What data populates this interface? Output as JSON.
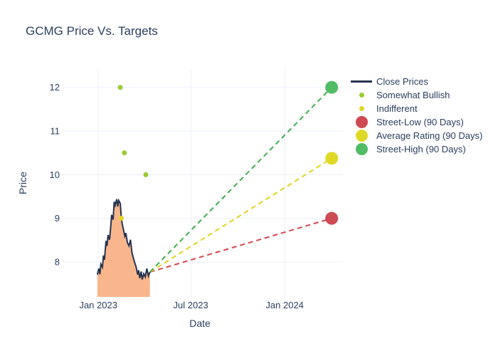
{
  "chart_data": {
    "type": "line",
    "title": "GCMG Price Vs. Targets",
    "xlabel": "Date",
    "ylabel": "Price",
    "x_range": [
      "2022-10-30",
      "2024-04-24"
    ],
    "y_range": [
      7.2,
      12.42
    ],
    "x_ticks": [
      {
        "date": "2023-01-01",
        "label": "Jan 2023"
      },
      {
        "date": "2023-07-01",
        "label": "Jul 2023"
      },
      {
        "date": "2024-01-01",
        "label": "Jan 2024"
      }
    ],
    "y_ticks": [
      8,
      9,
      10,
      11,
      12
    ],
    "grid": true,
    "legend_position": "right",
    "colors": {
      "grid": "#ebf0f8",
      "text": "#2a3f5f",
      "background": "#ffffff"
    },
    "close_prices": {
      "name": "Close Prices",
      "color": "#263450",
      "fill": "#f9b68c",
      "dates": [
        "2022-12-30",
        "2023-01-02",
        "2023-01-04",
        "2023-01-06",
        "2023-01-09",
        "2023-01-11",
        "2023-01-13",
        "2023-01-16",
        "2023-01-18",
        "2023-01-20",
        "2023-01-23",
        "2023-01-25",
        "2023-01-27",
        "2023-01-30",
        "2023-02-01",
        "2023-02-03",
        "2023-02-06",
        "2023-02-08",
        "2023-02-10",
        "2023-02-13",
        "2023-02-15",
        "2023-02-17",
        "2023-02-20",
        "2023-02-22",
        "2023-02-24",
        "2023-02-27",
        "2023-03-02",
        "2023-03-05",
        "2023-03-08",
        "2023-03-10",
        "2023-03-13",
        "2023-03-16",
        "2023-03-19",
        "2023-03-21",
        "2023-03-23",
        "2023-03-26",
        "2023-03-28",
        "2023-03-31",
        "2023-04-03",
        "2023-04-06",
        "2023-04-09",
        "2023-04-12"
      ],
      "values": [
        7.71,
        7.85,
        7.72,
        7.95,
        7.88,
        8.15,
        8.05,
        8.48,
        8.37,
        8.62,
        8.51,
        8.76,
        9.08,
        8.97,
        9.38,
        9.3,
        9.44,
        9.27,
        9.41,
        9.34,
        9.02,
        8.86,
        8.7,
        8.59,
        8.66,
        8.44,
        8.37,
        8.51,
        8.2,
        8.12,
        7.99,
        7.89,
        7.71,
        7.81,
        7.63,
        7.78,
        7.6,
        7.73,
        7.66,
        7.85,
        7.68,
        7.77
      ]
    },
    "ratings": [
      {
        "name": "Somewhat Bullish",
        "color": "#9acd32",
        "size": 7,
        "points": [
          {
            "date": "2023-02-13",
            "value": 12.0
          },
          {
            "date": "2023-02-21",
            "value": 10.5
          },
          {
            "date": "2023-04-04",
            "value": 10.0
          }
        ]
      },
      {
        "name": "Indifferent",
        "color": "#e1d723",
        "size": 7,
        "points": [
          {
            "date": "2023-02-15",
            "value": 9.0
          }
        ]
      }
    ],
    "target_line_start": {
      "date": "2023-04-12",
      "value": 7.77
    },
    "targets": [
      {
        "name": "Street-Low (90 Days)",
        "color": "#cd4a52",
        "line_color": "#d8454f",
        "date": "2024-04-02",
        "value": 9.0
      },
      {
        "name": "Average Rating (90 Days)",
        "color": "#dfd926",
        "line_color": "#e1d31f",
        "date": "2024-04-02",
        "value": 10.375
      },
      {
        "name": "Street-High (90 Days)",
        "color": "#50bd66",
        "line_color": "#3db04c",
        "date": "2024-04-02",
        "value": 12.0
      }
    ],
    "legend": [
      {
        "label": "Close Prices",
        "marker": "line",
        "color": "#263450"
      },
      {
        "label": "Somewhat Bullish",
        "marker": "dot-small",
        "color": "#9acd32"
      },
      {
        "label": "Indifferent",
        "marker": "dot-small",
        "color": "#e1d723"
      },
      {
        "label": "Street-Low (90 Days)",
        "marker": "dot-large",
        "color": "#cd4a52"
      },
      {
        "label": "Average Rating (90 Days)",
        "marker": "dot-large",
        "color": "#dfd926"
      },
      {
        "label": "Street-High (90 Days)",
        "marker": "dot-large",
        "color": "#50bd66"
      }
    ]
  }
}
